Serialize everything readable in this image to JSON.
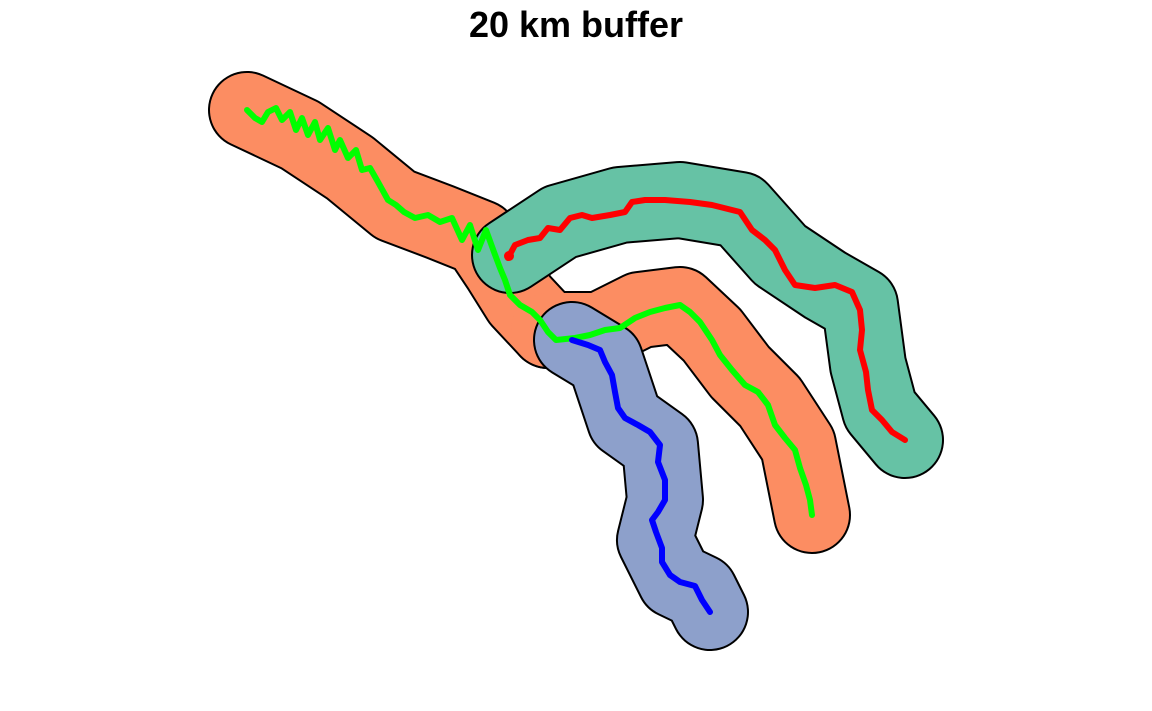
{
  "map": {
    "title": "20 km buffer",
    "outline_color": "#000000",
    "buffers": [
      {
        "name": "buffer-orange",
        "fill": "#fc8d62"
      },
      {
        "name": "buffer-teal",
        "fill": "#66c2a5"
      },
      {
        "name": "buffer-blue",
        "fill": "#8da0cb"
      }
    ],
    "rivers": [
      {
        "name": "river-green",
        "color": "#00ff00"
      },
      {
        "name": "river-red",
        "color": "#ff0000"
      },
      {
        "name": "river-blue",
        "color": "#0000ff"
      }
    ]
  }
}
